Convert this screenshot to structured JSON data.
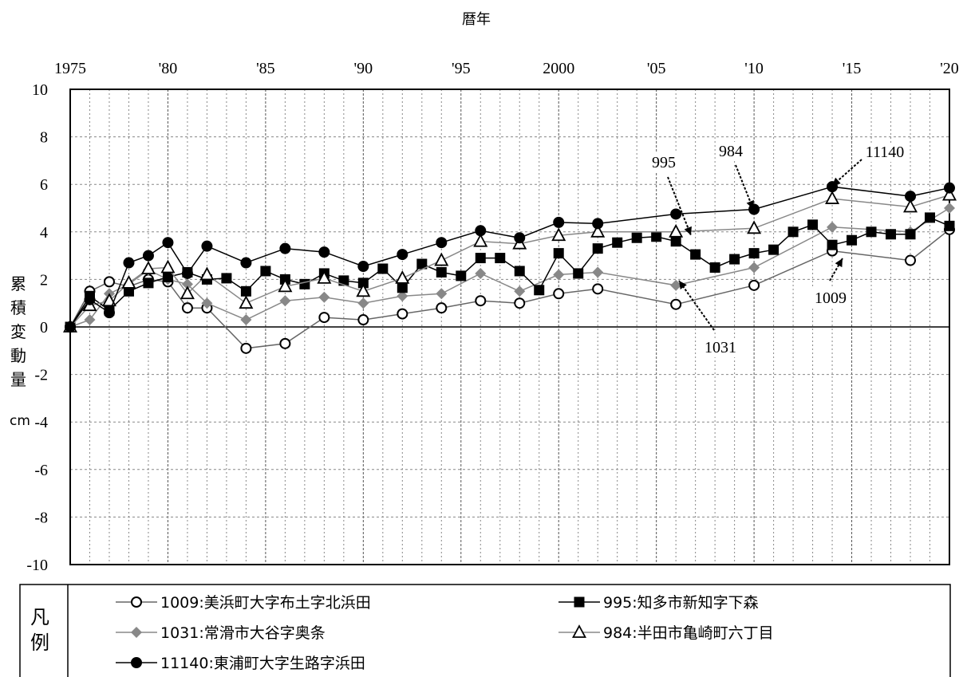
{
  "chart_data": {
    "type": "line",
    "title": "暦年",
    "ylabel": "累積変動量",
    "yunit": "cm",
    "x_range": [
      1975,
      2020
    ],
    "ylim": [
      -10,
      10
    ],
    "y_ticks": [
      10,
      8,
      6,
      4,
      2,
      0,
      -2,
      -4,
      -6,
      -8,
      -10
    ],
    "x_tick_labels": [
      {
        "x": 1975,
        "label": "1975"
      },
      {
        "x": 1980,
        "label": "'80"
      },
      {
        "x": 1985,
        "label": "'85"
      },
      {
        "x": 1990,
        "label": "'90"
      },
      {
        "x": 1995,
        "label": "'95"
      },
      {
        "x": 2000,
        "label": "2000"
      },
      {
        "x": 2005,
        "label": "'05"
      },
      {
        "x": 2010,
        "label": "'10"
      },
      {
        "x": 2015,
        "label": "'15"
      },
      {
        "x": 2020,
        "label": "'20"
      }
    ],
    "grid": true,
    "legend_title": "凡例",
    "legend_placement": "bottom",
    "series": [
      {
        "name": "1009:美浜町大字布土字北浜田",
        "marker": "circle-open",
        "color": "#666666",
        "marker_color": "#000000",
        "x": [
          1975,
          1976,
          1977,
          1978,
          1979,
          1980,
          1981,
          1982,
          1984,
          1986,
          1988,
          1990,
          1992,
          1994,
          1996,
          1998,
          2000,
          2002,
          2006,
          2010,
          2014,
          2018,
          2020
        ],
        "y": [
          0,
          1.5,
          1.9,
          1.7,
          2.0,
          1.9,
          0.8,
          0.8,
          -0.9,
          -0.7,
          0.4,
          0.3,
          0.55,
          0.8,
          1.1,
          1.0,
          1.4,
          1.6,
          0.95,
          1.75,
          3.2,
          2.8,
          4.1
        ]
      },
      {
        "name": "1031:常滑市大谷字奥条",
        "marker": "diamond",
        "color": "#888888",
        "marker_color": "#888888",
        "x": [
          1975,
          1976,
          1977,
          1978,
          1979,
          1980,
          1981,
          1982,
          1984,
          1986,
          1988,
          1990,
          1992,
          1994,
          1996,
          1998,
          2000,
          2002,
          2006,
          2010,
          2014,
          2018,
          2020
        ],
        "y": [
          0,
          0.3,
          1.4,
          1.8,
          2.4,
          2.0,
          1.8,
          1.0,
          0.3,
          1.1,
          1.25,
          1.0,
          1.3,
          1.4,
          2.25,
          1.5,
          2.2,
          2.3,
          1.75,
          2.5,
          4.2,
          4.0,
          5.0
        ]
      },
      {
        "name": "995:知多市新知字下森",
        "marker": "square",
        "color": "#000000",
        "marker_color": "#000000",
        "x": [
          1975,
          1976,
          1977,
          1978,
          1979,
          1980,
          1981,
          1982,
          1983,
          1984,
          1985,
          1986,
          1987,
          1988,
          1989,
          1990,
          1991,
          1992,
          1993,
          1994,
          1995,
          1996,
          1997,
          1998,
          1999,
          2000,
          2001,
          2002,
          2003,
          2004,
          2005,
          2006,
          2007,
          2008,
          2009,
          2010,
          2011,
          2012,
          2013,
          2014,
          2015,
          2016,
          2017,
          2018,
          2019,
          2020
        ],
        "y": [
          0,
          1.3,
          0.7,
          1.5,
          1.85,
          2.1,
          2.3,
          2.0,
          2.05,
          1.5,
          2.35,
          2.0,
          1.8,
          2.25,
          1.95,
          1.85,
          2.45,
          1.65,
          2.65,
          2.3,
          2.15,
          2.9,
          2.9,
          2.35,
          1.55,
          3.1,
          2.25,
          3.3,
          3.55,
          3.75,
          3.8,
          3.6,
          3.05,
          2.5,
          2.85,
          3.1,
          3.25,
          4.0,
          4.3,
          3.45,
          3.65,
          4.0,
          3.9,
          3.9,
          4.6,
          4.25
        ]
      },
      {
        "name": "984:半田市亀崎町六丁目",
        "marker": "triangle-open",
        "color": "#888888",
        "marker_color": "#000000",
        "x": [
          1975,
          1976,
          1977,
          1978,
          1979,
          1980,
          1981,
          1982,
          1984,
          1986,
          1988,
          1990,
          1992,
          1994,
          1996,
          1998,
          2000,
          2002,
          2006,
          2010,
          2014,
          2018,
          2020
        ],
        "y": [
          0,
          0.9,
          1.1,
          1.85,
          2.45,
          2.5,
          1.4,
          2.2,
          1.0,
          1.7,
          2.05,
          1.5,
          2.05,
          2.8,
          3.6,
          3.5,
          3.85,
          4.0,
          4.0,
          4.15,
          5.4,
          5.05,
          5.55
        ]
      },
      {
        "name": "11140:東浦町大字生路字浜田",
        "marker": "circle-filled",
        "color": "#000000",
        "marker_color": "#000000",
        "x": [
          1975,
          1976,
          1977,
          1978,
          1979,
          1980,
          1981,
          1982,
          1984,
          1986,
          1988,
          1990,
          1992,
          1994,
          1996,
          1998,
          2000,
          2002,
          2006,
          2010,
          2014,
          2018,
          2020
        ],
        "y": [
          0,
          1.15,
          0.6,
          2.7,
          3.0,
          3.55,
          2.25,
          3.4,
          2.7,
          3.3,
          3.15,
          2.55,
          3.05,
          3.55,
          4.05,
          3.75,
          4.4,
          4.35,
          4.75,
          4.95,
          5.9,
          5.5,
          5.85
        ]
      }
    ],
    "annotations": [
      {
        "text": "995"
      },
      {
        "text": "984"
      },
      {
        "text": "11140"
      },
      {
        "text": "1009"
      },
      {
        "text": "1031"
      }
    ]
  }
}
